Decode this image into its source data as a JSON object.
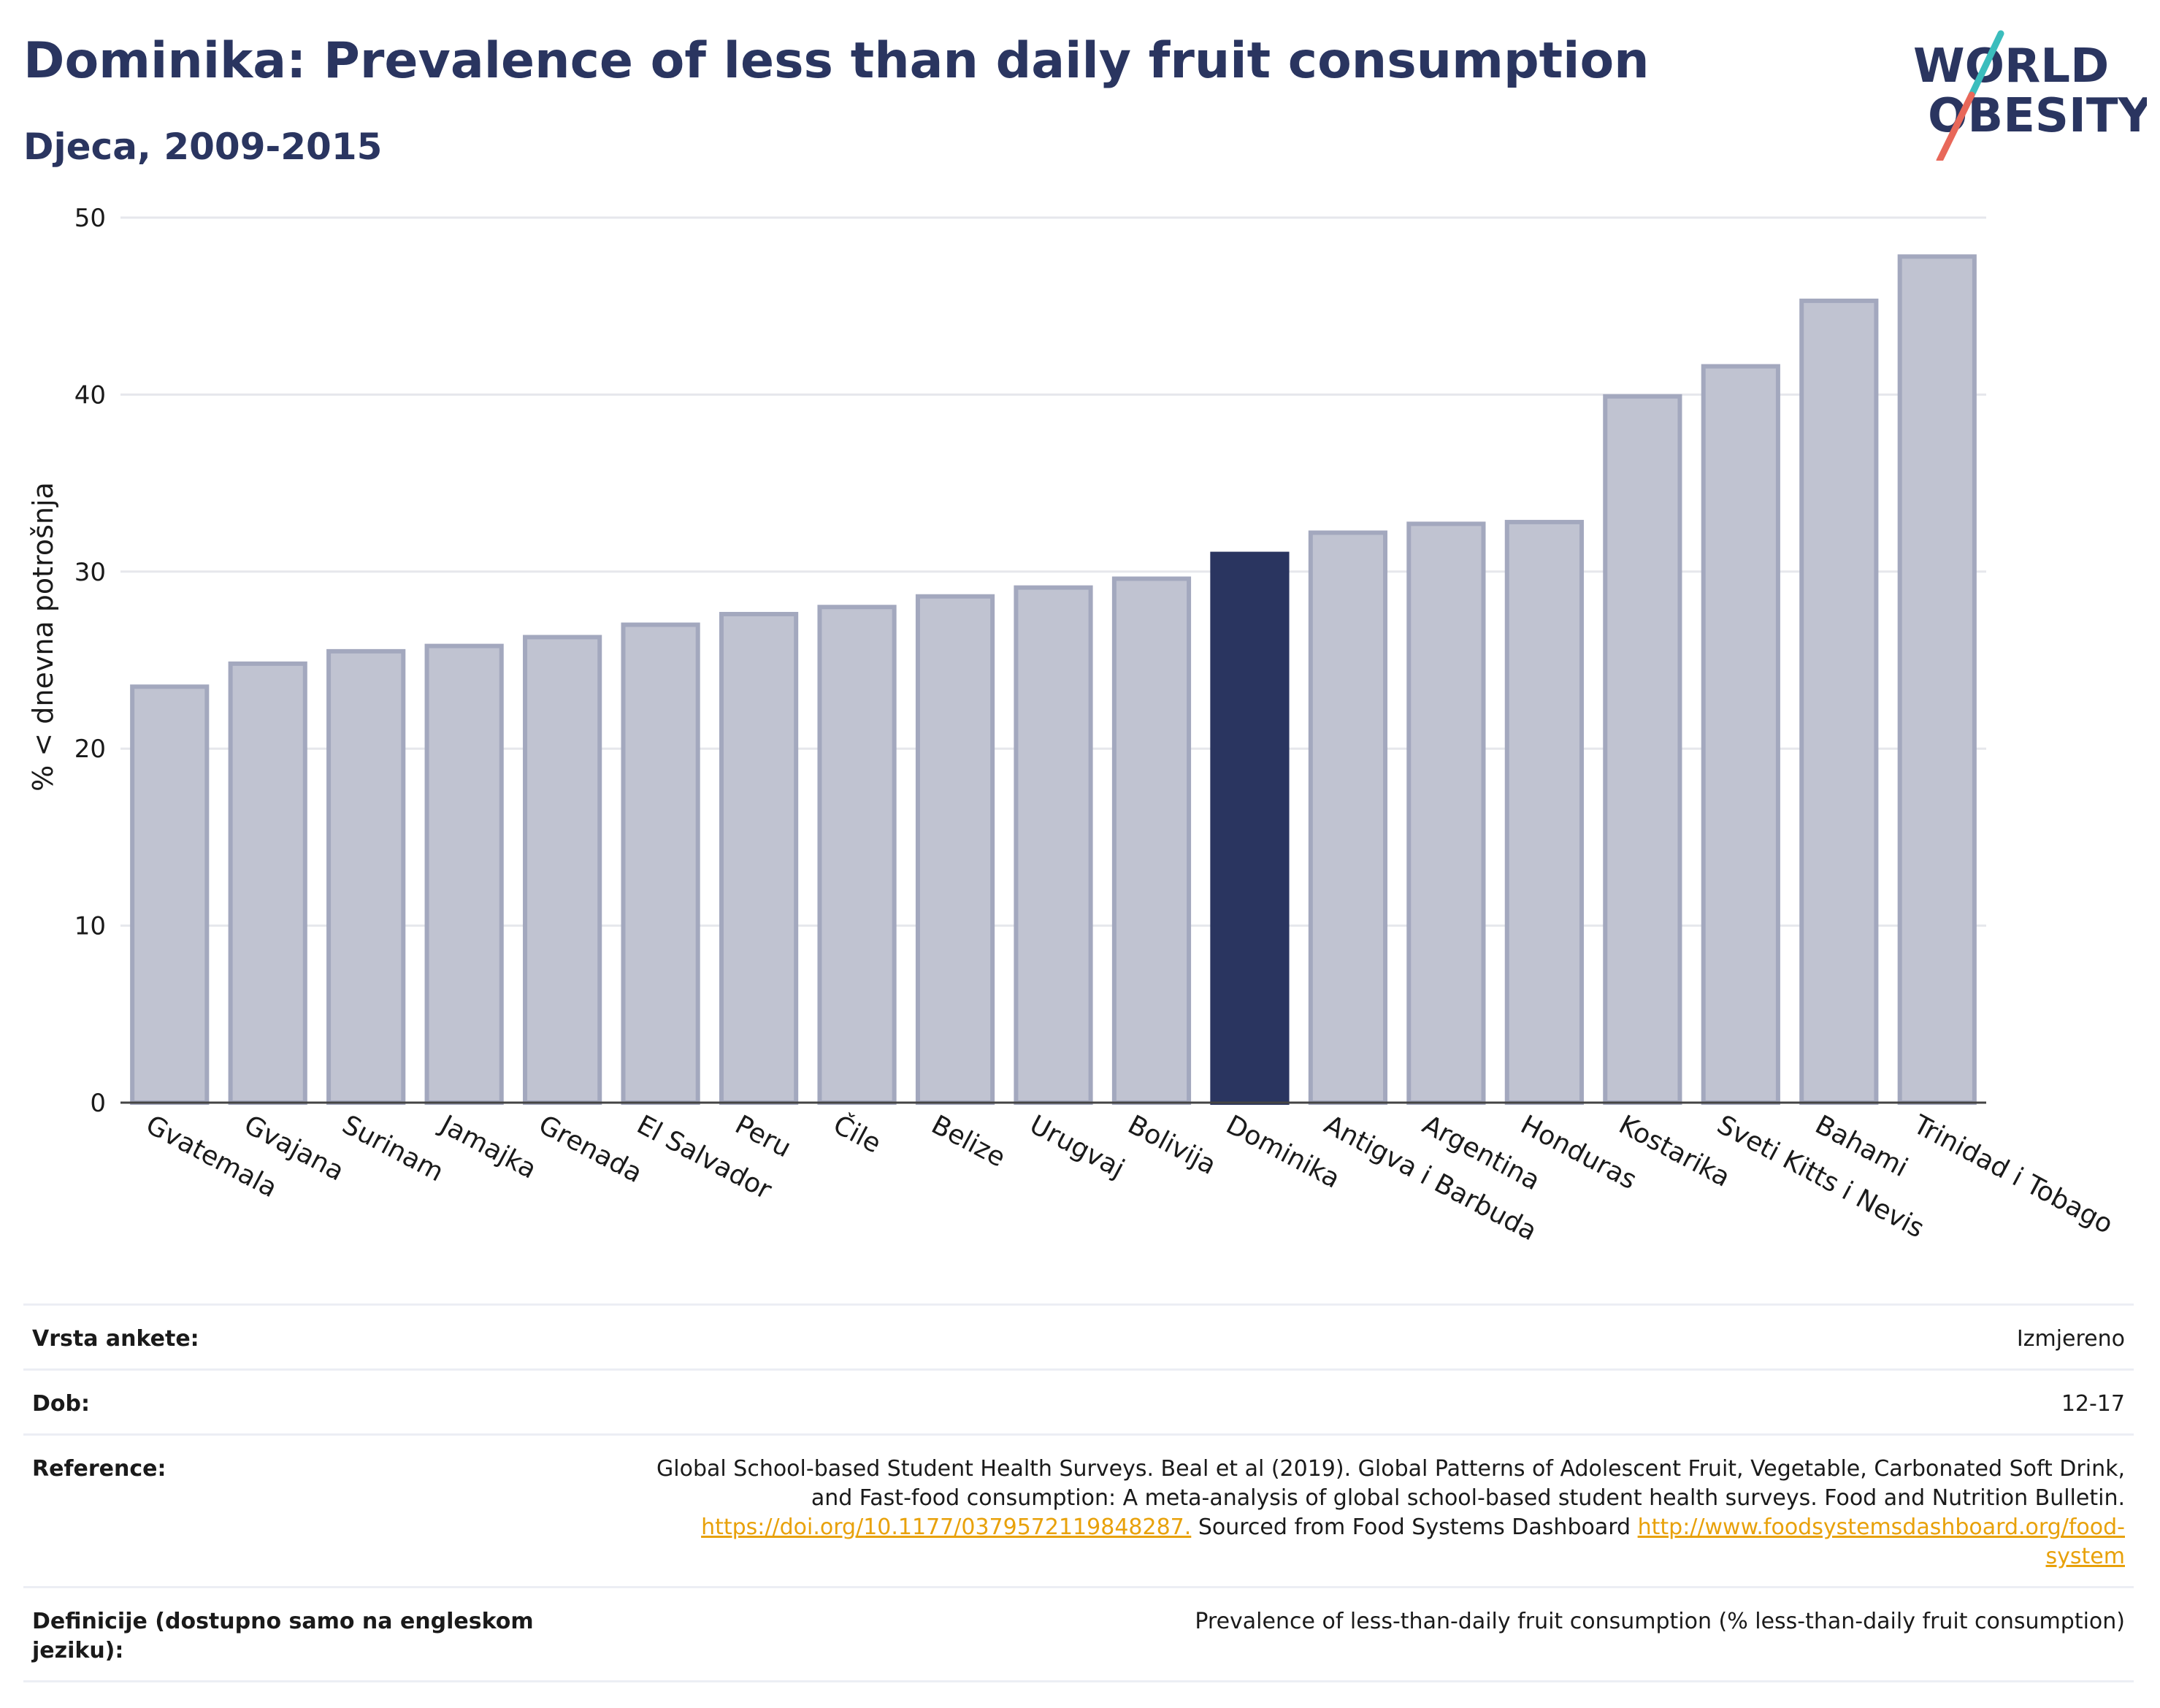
{
  "header": {
    "title": "Dominika: Prevalence of less than daily fruit consumption",
    "subtitle": "Djeca, 2009-2015"
  },
  "logo": {
    "line1": "WORLD",
    "line2": "OBESITY",
    "accent_teal": "#3bbdbd",
    "accent_coral": "#e8685a"
  },
  "chart_data": {
    "type": "bar",
    "title": "Dominika: Prevalence of less than daily fruit consumption",
    "subtitle": "Djeca, 2009-2015",
    "ylabel": "% < dnevna potrošnja",
    "xlabel": "",
    "ylim": [
      0,
      50
    ],
    "yticks": [
      0,
      10,
      20,
      30,
      40,
      50
    ],
    "grid": true,
    "highlight": "Dominika",
    "colors": {
      "bar": "#c0c3d1",
      "bar_edge": "#a3a8be",
      "highlight": "#2a3560"
    },
    "categories": [
      "Gvatemala",
      "Gvajana",
      "Surinam",
      "Jamajka",
      "Grenada",
      "El Salvador",
      "Peru",
      "Čile",
      "Belize",
      "Urugvaj",
      "Bolivija",
      "Dominika",
      "Antigva i Barbuda",
      "Argentina",
      "Honduras",
      "Kostarika",
      "Sveti Kitts i Nevis",
      "Bahami",
      "Trinidad i Tobago"
    ],
    "values": [
      23.5,
      24.8,
      25.5,
      25.8,
      26.3,
      27.0,
      27.6,
      28.0,
      28.6,
      29.1,
      29.6,
      31.0,
      32.2,
      32.7,
      32.8,
      39.9,
      41.6,
      45.3,
      47.8
    ]
  },
  "info": {
    "survey_type": {
      "label": "Vrsta ankete:",
      "value": "Izmjereno"
    },
    "age": {
      "label": "Dob:",
      "value": "12-17"
    },
    "reference": {
      "label": "Reference:",
      "line1": "Global School-based Student Health Surveys. Beal et al (2019). Global Patterns of Adolescent Fruit, Vegetable, Carbonated Soft Drink,",
      "line2": "and Fast-food consumption: A meta-analysis of global school-based student health surveys. Food and Nutrition Bulletin.",
      "doi": "https://doi.org/10.1177/0379572119848287.",
      "sourced": " Sourced from Food Systems Dashboard ",
      "url1": "http://www.foodsystemsdashboard.org/food-",
      "url2": "system"
    },
    "definition": {
      "label": "Definicije (dostupno samo na engleskom jeziku):",
      "value": "Prevalence of less-than-daily fruit consumption (% less-than-daily fruit consumption)"
    }
  }
}
